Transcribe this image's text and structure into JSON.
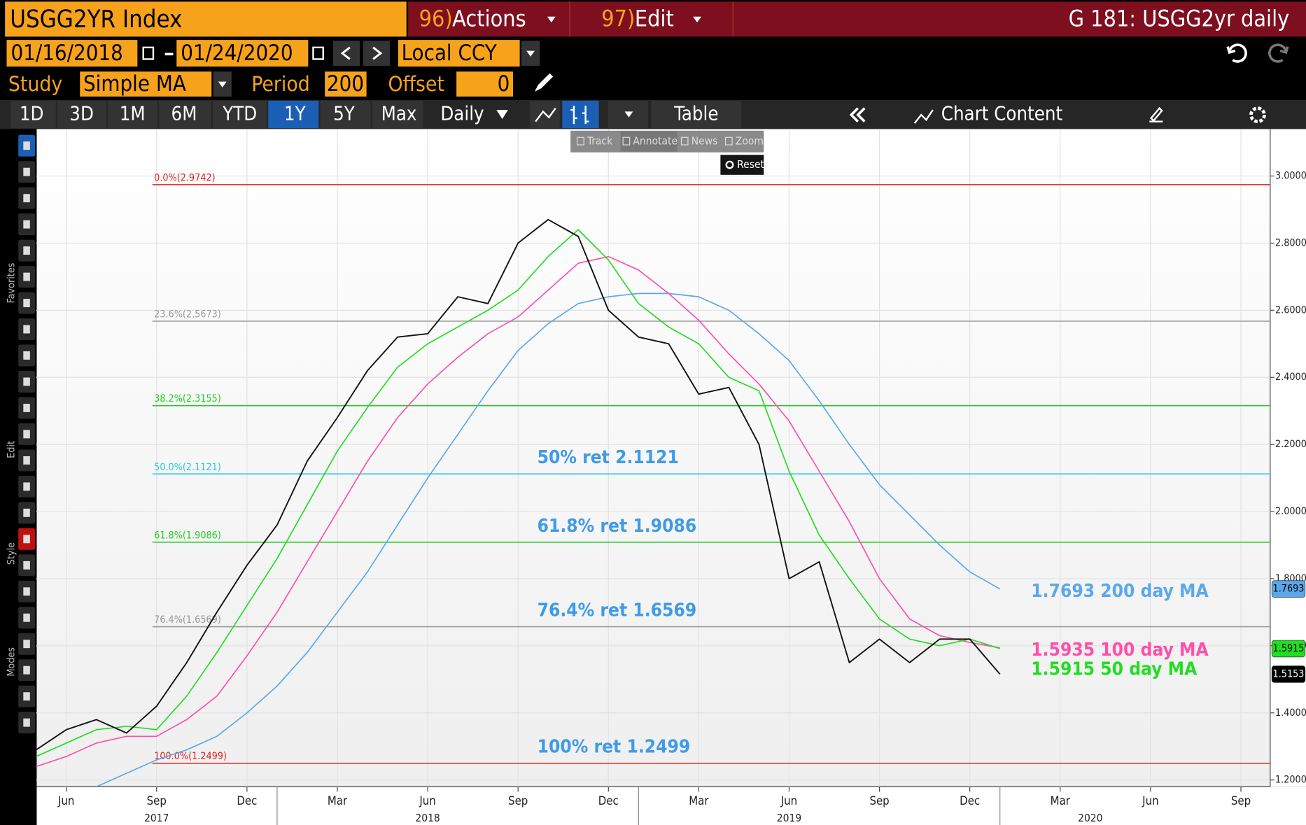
{
  "ui": {
    "security": "USGG2YR Index",
    "actions_num": "96)",
    "actions": "Actions",
    "edit_num": "97)",
    "edit": "Edit",
    "window_title": "G 181: USGG2yr daily",
    "date_from": "01/16/2018",
    "date_to": "01/24/2020",
    "currency": "Local CCY",
    "study_label": "Study",
    "study": "Simple MA",
    "period_label": "Period",
    "period": "200",
    "offset_label": "Offset",
    "offset": "0",
    "ranges": [
      "1D",
      "3D",
      "1M",
      "6M",
      "YTD",
      "1Y",
      "5Y",
      "Max"
    ],
    "active_range": "1Y",
    "frequency": "Daily",
    "table": "Table",
    "chart_content": "Chart Content",
    "tools": [
      "Track",
      "Annotate",
      "News",
      "Zoom"
    ],
    "reset": "Reset",
    "sidebar": [
      "Favorites",
      "Edit",
      "Style",
      "Modes"
    ]
  },
  "chart_data": {
    "type": "line",
    "grid": true,
    "x": [
      "2017-05",
      "2017-06",
      "2017-07",
      "2017-08",
      "2017-09",
      "2017-10",
      "2017-11",
      "2017-12",
      "2018-01",
      "2018-02",
      "2018-03",
      "2018-04",
      "2018-05",
      "2018-06",
      "2018-07",
      "2018-08",
      "2018-09",
      "2018-10",
      "2018-11",
      "2018-12",
      "2019-01",
      "2019-02",
      "2019-03",
      "2019-04",
      "2019-05",
      "2019-06",
      "2019-07",
      "2019-08",
      "2019-09",
      "2019-10",
      "2019-11",
      "2019-12",
      "2020-01"
    ],
    "series": [
      {
        "name": "USGG2YR Index",
        "color": "#111111",
        "badge": "1.5153",
        "badge_color": "#000000",
        "values": [
          1.29,
          1.35,
          1.38,
          1.34,
          1.42,
          1.55,
          1.7,
          1.84,
          1.96,
          2.15,
          2.28,
          2.42,
          2.52,
          2.53,
          2.64,
          2.62,
          2.8,
          2.87,
          2.82,
          2.6,
          2.52,
          2.5,
          2.35,
          2.37,
          2.2,
          1.8,
          1.85,
          1.55,
          1.62,
          1.55,
          1.62,
          1.62,
          1.5153
        ]
      },
      {
        "name": "50 day MA",
        "color": "#22dd22",
        "label": "1.5915 50 day MA",
        "badge": "1.5915",
        "badge_color": "#22dd22",
        "values": [
          1.27,
          1.31,
          1.35,
          1.36,
          1.35,
          1.45,
          1.58,
          1.72,
          1.86,
          2.02,
          2.18,
          2.31,
          2.43,
          2.5,
          2.55,
          2.6,
          2.66,
          2.76,
          2.84,
          2.75,
          2.62,
          2.55,
          2.5,
          2.4,
          2.36,
          2.12,
          1.93,
          1.8,
          1.68,
          1.62,
          1.6,
          1.62,
          1.5915
        ]
      },
      {
        "name": "100 day MA",
        "color": "#ff4fa8",
        "label": "1.5935 100 day MA",
        "values": [
          1.24,
          1.27,
          1.31,
          1.33,
          1.33,
          1.38,
          1.45,
          1.57,
          1.7,
          1.85,
          2.0,
          2.15,
          2.28,
          2.38,
          2.46,
          2.53,
          2.58,
          2.66,
          2.74,
          2.76,
          2.72,
          2.65,
          2.57,
          2.47,
          2.38,
          2.27,
          2.12,
          1.97,
          1.8,
          1.68,
          1.63,
          1.61,
          1.5935
        ]
      },
      {
        "name": "200 day MA",
        "color": "#5aa8ec",
        "label": "1.7693 200 day MA",
        "badge": "1.7693",
        "badge_color": "#5aa8ec",
        "values": [
          null,
          null,
          1.18,
          1.22,
          1.26,
          1.29,
          1.33,
          1.4,
          1.48,
          1.58,
          1.7,
          1.82,
          1.96,
          2.1,
          2.23,
          2.36,
          2.48,
          2.56,
          2.62,
          2.64,
          2.65,
          2.65,
          2.64,
          2.6,
          2.53,
          2.45,
          2.33,
          2.2,
          2.08,
          1.99,
          1.9,
          1.82,
          1.7693
        ]
      }
    ],
    "levels": [
      {
        "value": 2.9742,
        "label": "0.0%(2.9742)",
        "color": "#e02020"
      },
      {
        "value": 2.5673,
        "label": "23.6%(2.5673)",
        "color": "#999999"
      },
      {
        "value": 2.3155,
        "label": "38.2%(2.3155)",
        "color": "#22cc22"
      },
      {
        "value": 2.1121,
        "label": "50.0%(2.1121)",
        "color": "#22c8e8",
        "annotation": "50% ret 2.1121"
      },
      {
        "value": 1.9086,
        "label": "61.8%(1.9086)",
        "color": "#22cc22",
        "annotation": "61.8% ret 1.9086"
      },
      {
        "value": 1.6569,
        "label": "76.4%(1.6569)",
        "color": "#999999",
        "annotation": "76.4% ret 1.6569"
      },
      {
        "value": 1.2499,
        "label": "100.0%(1.2499)",
        "color": "#e02020",
        "annotation": "100% ret 1.2499"
      }
    ],
    "annotation_color": "#3f9be6",
    "xlim": [
      "2017-05",
      "2020-10"
    ],
    "xticks": [
      {
        "value": "2017-06",
        "label": "Jun"
      },
      {
        "value": "2017-09",
        "label": "Sep"
      },
      {
        "value": "2017-12",
        "label": "Dec"
      },
      {
        "value": "2018-03",
        "label": "Mar"
      },
      {
        "value": "2018-06",
        "label": "Jun"
      },
      {
        "value": "2018-09",
        "label": "Sep"
      },
      {
        "value": "2018-12",
        "label": "Dec"
      },
      {
        "value": "2019-03",
        "label": "Mar"
      },
      {
        "value": "2019-06",
        "label": "Jun"
      },
      {
        "value": "2019-09",
        "label": "Sep"
      },
      {
        "value": "2019-12",
        "label": "Dec"
      },
      {
        "value": "2020-03",
        "label": "Mar"
      },
      {
        "value": "2020-06",
        "label": "Jun"
      },
      {
        "value": "2020-09",
        "label": "Sep"
      }
    ],
    "years": [
      {
        "value": "2017-09",
        "label": "2017"
      },
      {
        "value": "2018-06",
        "label": "2018"
      },
      {
        "value": "2019-06",
        "label": "2019"
      },
      {
        "value": "2020-04",
        "label": "2020"
      }
    ],
    "ylim": [
      1.18,
      3.14
    ],
    "yticks": [
      {
        "value": 1.2,
        "label": "1.2000"
      },
      {
        "value": 1.4,
        "label": "1.4000"
      },
      {
        "value": 1.6,
        "label": "1.6000"
      },
      {
        "value": 1.8,
        "label": "1.8000"
      },
      {
        "value": 2.0,
        "label": "2.0000"
      },
      {
        "value": 2.2,
        "label": "2.2000"
      },
      {
        "value": 2.4,
        "label": "2.4000"
      },
      {
        "value": 2.6,
        "label": "2.6000"
      },
      {
        "value": 2.8,
        "label": "2.8000"
      },
      {
        "value": 3.0,
        "label": "3.0000"
      }
    ]
  }
}
